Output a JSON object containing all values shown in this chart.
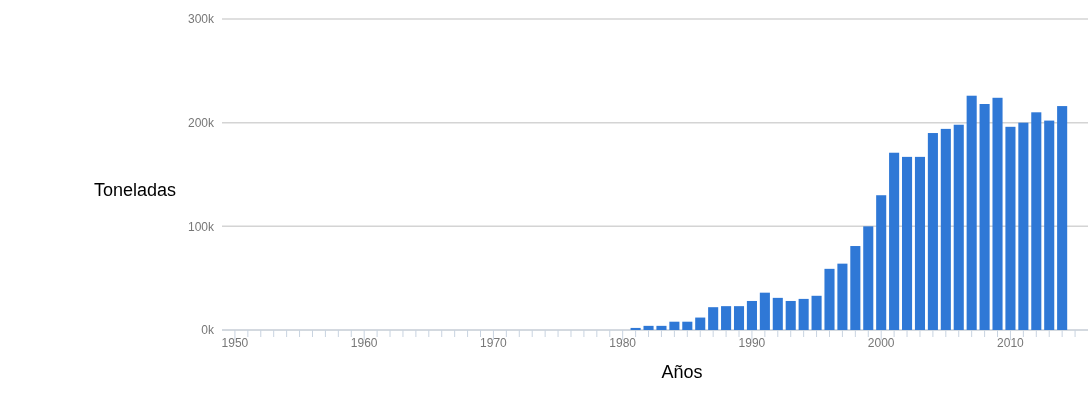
{
  "chart_data": {
    "type": "bar",
    "xlabel": "Años",
    "ylabel": "Toneladas",
    "color": "#2f78d6",
    "x": [
      1981,
      1982,
      1983,
      1984,
      1985,
      1986,
      1987,
      1988,
      1989,
      1990,
      1991,
      1992,
      1993,
      1994,
      1995,
      1996,
      1997,
      1998,
      1999,
      2000,
      2001,
      2002,
      2003,
      2004,
      2005,
      2006,
      2007,
      2008,
      2009,
      2010,
      2011,
      2012,
      2013,
      2014
    ],
    "values": [
      2000,
      4000,
      4000,
      8000,
      8000,
      12000,
      22000,
      23000,
      23000,
      28000,
      36000,
      31000,
      28000,
      30000,
      33000,
      59000,
      64000,
      81000,
      100000,
      130000,
      171000,
      167000,
      167000,
      190000,
      194000,
      198000,
      226000,
      218000,
      224000,
      196000,
      200000,
      210000,
      202000,
      216000
    ],
    "xlim": [
      1949,
      2016
    ],
    "xticks": [
      1950,
      {
        "value": 1951,
        "label": null
      },
      {
        "value": 1952,
        "label": null
      },
      {
        "value": 1953,
        "label": null
      },
      {
        "value": 1954,
        "label": null
      },
      {
        "value": 1955,
        "label": null
      },
      {
        "value": 1956,
        "label": null
      },
      {
        "value": 1957,
        "label": null
      },
      {
        "value": 1958,
        "label": null
      },
      {
        "value": 1959,
        "label": null
      },
      1960,
      {
        "value": 1961,
        "label": null
      },
      {
        "value": 1962,
        "label": null
      },
      {
        "value": 1963,
        "label": null
      },
      {
        "value": 1964,
        "label": null
      },
      {
        "value": 1965,
        "label": null
      },
      {
        "value": 1966,
        "label": null
      },
      {
        "value": 1967,
        "label": null
      },
      {
        "value": 1968,
        "label": null
      },
      {
        "value": 1969,
        "label": null
      },
      1970,
      {
        "value": 1971,
        "label": null
      },
      {
        "value": 1972,
        "label": null
      },
      {
        "value": 1973,
        "label": null
      },
      {
        "value": 1974,
        "label": null
      },
      {
        "value": 1975,
        "label": null
      },
      {
        "value": 1976,
        "label": null
      },
      {
        "value": 1977,
        "label": null
      },
      {
        "value": 1978,
        "label": null
      },
      {
        "value": 1979,
        "label": null
      },
      1980,
      {
        "value": 1981,
        "label": null
      },
      {
        "value": 1982,
        "label": null
      },
      {
        "value": 1983,
        "label": null
      },
      {
        "value": 1984,
        "label": null
      },
      {
        "value": 1985,
        "label": null
      },
      {
        "value": 1986,
        "label": null
      },
      {
        "value": 1987,
        "label": null
      },
      {
        "value": 1988,
        "label": null
      },
      {
        "value": 1989,
        "label": null
      },
      1990,
      {
        "value": 1991,
        "label": null
      },
      {
        "value": 1992,
        "label": null
      },
      {
        "value": 1993,
        "label": null
      },
      {
        "value": 1994,
        "label": null
      },
      {
        "value": 1995,
        "label": null
      },
      {
        "value": 1996,
        "label": null
      },
      {
        "value": 1997,
        "label": null
      },
      {
        "value": 1998,
        "label": null
      },
      {
        "value": 1999,
        "label": null
      },
      2000,
      {
        "value": 2001,
        "label": null
      },
      {
        "value": 2002,
        "label": null
      },
      {
        "value": 2003,
        "label": null
      },
      {
        "value": 2004,
        "label": null
      },
      {
        "value": 2005,
        "label": null
      },
      {
        "value": 2006,
        "label": null
      },
      {
        "value": 2007,
        "label": null
      },
      {
        "value": 2008,
        "label": null
      },
      {
        "value": 2009,
        "label": null
      },
      2010,
      {
        "value": 2011,
        "label": null
      },
      {
        "value": 2012,
        "label": null
      },
      {
        "value": 2013,
        "label": null
      },
      {
        "value": 2014,
        "label": null
      },
      {
        "value": 2015,
        "label": null
      }
    ],
    "ylim": [
      0,
      300000
    ],
    "yticks": [
      {
        "value": 0,
        "label": "0k"
      },
      {
        "value": 100000,
        "label": "100k"
      },
      {
        "value": 200000,
        "label": "200k"
      },
      {
        "value": 300000,
        "label": "300k"
      }
    ],
    "grid": "y"
  }
}
